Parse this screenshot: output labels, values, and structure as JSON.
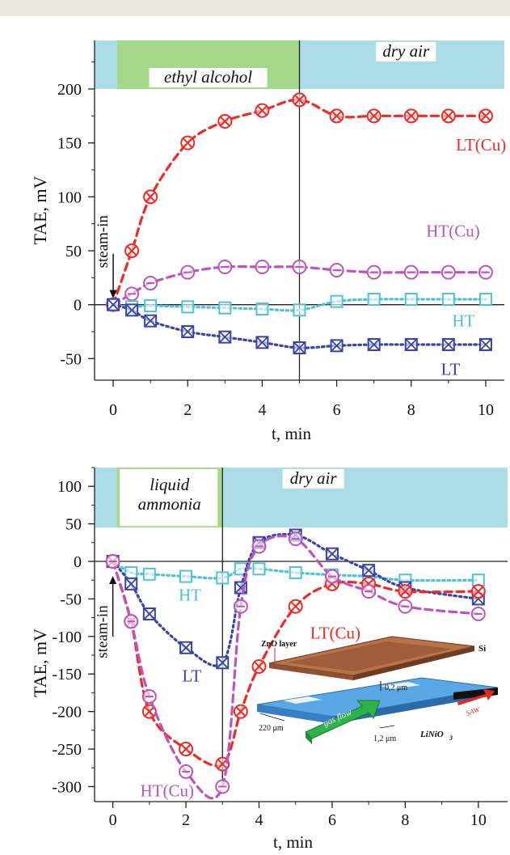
{
  "chart_data": [
    {
      "type": "line",
      "xlabel": "t, min",
      "ylabel": "TAE, mV",
      "xlim": [
        -0.5,
        10.5
      ],
      "ylim": [
        -70,
        245
      ],
      "xticks": [
        0,
        2,
        4,
        6,
        8,
        10
      ],
      "yticks": [
        -50,
        0,
        50,
        100,
        150,
        200
      ],
      "phases": [
        {
          "label": "ethyl alcohol",
          "x0": 0.1,
          "x1": 5.0,
          "color": "#a5d98a"
        },
        {
          "label": "dry air",
          "x0": 5.0,
          "x1": 10.5,
          "color": "#acdde6"
        }
      ],
      "prephase": {
        "x0": -0.5,
        "x1": 0.1,
        "color": "#acdde6"
      },
      "phase_band": [
        200,
        245
      ],
      "phase_line_x": 5,
      "annotation": {
        "text": "steam-in",
        "x": 0,
        "y": 0
      },
      "series": [
        {
          "name": "LT(Cu)",
          "color": "#ee2a24",
          "marker": "circle-x",
          "style": "dashed",
          "x": [
            0,
            0.5,
            1,
            2,
            3,
            4,
            5,
            6,
            7,
            8,
            9,
            10
          ],
          "y": [
            0,
            50,
            100,
            150,
            170,
            180,
            190,
            175,
            175,
            175,
            175,
            175
          ]
        },
        {
          "name": "HT(Cu)",
          "color": "#bb55bb",
          "marker": "circle-dash",
          "style": "dashed",
          "x": [
            0,
            0.5,
            1,
            2,
            3,
            4,
            5,
            6,
            7,
            8,
            9,
            10
          ],
          "y": [
            0,
            10,
            20,
            30,
            35,
            35,
            35,
            32,
            30,
            30,
            30,
            30
          ]
        },
        {
          "name": "HT",
          "color": "#4fc3d6",
          "marker": "square",
          "style": "dotted",
          "x": [
            0,
            0.5,
            1,
            2,
            3,
            4,
            5,
            6,
            7,
            8,
            9,
            10
          ],
          "y": [
            0,
            -2,
            -1,
            -2,
            -3,
            -4,
            -5,
            3,
            5,
            5,
            5,
            5
          ]
        },
        {
          "name": "LT",
          "color": "#3a43a8",
          "marker": "square-x",
          "style": "dotted",
          "x": [
            0,
            0.5,
            1,
            2,
            3,
            4,
            5,
            6,
            7,
            8,
            9,
            10
          ],
          "y": [
            0,
            -5,
            -15,
            -25,
            -30,
            -35,
            -40,
            -38,
            -37,
            -37,
            -37,
            -37
          ]
        }
      ],
      "series_labels": [
        {
          "text": "LT(Cu)",
          "x": 9.2,
          "y": 143,
          "color": "#ee2a24"
        },
        {
          "text": "HT(Cu)",
          "x": 8.4,
          "y": 63,
          "color": "#bb55bb"
        },
        {
          "text": "HT",
          "x": 9.1,
          "y": -20,
          "color": "#4fc3d6"
        },
        {
          "text": "LT",
          "x": 8.8,
          "y": -65,
          "color": "#3a43a8"
        }
      ]
    },
    {
      "type": "line",
      "xlabel": "t, min",
      "ylabel": "TAE, mV",
      "xlim": [
        -0.5,
        10.8
      ],
      "ylim": [
        -320,
        125
      ],
      "xticks": [
        0,
        2,
        4,
        6,
        8,
        10
      ],
      "yticks": [
        -300,
        -250,
        -200,
        -150,
        -100,
        -50,
        0,
        50,
        100
      ],
      "phases": [
        {
          "label": "liquid ammonia",
          "x0": 0.1,
          "x1": 3.0,
          "color": "#a5d98a"
        },
        {
          "label": "dry air",
          "x0": 3.0,
          "x1": 10.8,
          "color": "#acdde6"
        }
      ],
      "prephase": {
        "x0": -0.5,
        "x1": 0.1,
        "color": "#acdde6"
      },
      "phase_band": [
        45,
        125
      ],
      "phase_line_x": 3,
      "annotation": {
        "text": "steam-in",
        "x": 0,
        "y": 0
      },
      "series": [
        {
          "name": "HT",
          "color": "#4fc3d6",
          "marker": "square",
          "style": "dotted",
          "x": [
            0,
            0.5,
            1,
            2,
            3,
            3.5,
            4,
            5,
            6,
            7,
            8,
            10
          ],
          "y": [
            0,
            -15,
            -17,
            -20,
            -22,
            -10,
            -10,
            -15,
            -18,
            -20,
            -25,
            -25
          ]
        },
        {
          "name": "LT",
          "color": "#3a43a8",
          "marker": "square-x",
          "style": "dotted",
          "x": [
            0,
            0.5,
            1,
            2,
            3,
            3.5,
            4,
            5,
            6,
            7,
            8,
            10
          ],
          "y": [
            0,
            -30,
            -70,
            -115,
            -135,
            -35,
            25,
            35,
            10,
            -12,
            -35,
            -50
          ]
        },
        {
          "name": "LT(Cu)",
          "color": "#ee2a24",
          "marker": "circle-x",
          "style": "dashed",
          "x": [
            0,
            0.5,
            1,
            2,
            3,
            3.5,
            4,
            5,
            6,
            7,
            8,
            10
          ],
          "y": [
            0,
            -80,
            -200,
            -250,
            -270,
            -200,
            -140,
            -60,
            -30,
            -30,
            -40,
            -40
          ]
        },
        {
          "name": "HT(Cu)",
          "color": "#bb55bb",
          "marker": "circle-dash",
          "style": "dashed",
          "x": [
            0,
            0.5,
            1,
            2,
            3,
            3.5,
            4,
            5,
            6,
            7,
            8,
            10
          ],
          "y": [
            0,
            -80,
            -180,
            -280,
            -300,
            -60,
            20,
            30,
            -20,
            -40,
            -60,
            -70
          ]
        }
      ],
      "series_labels": [
        {
          "text": "HT",
          "x": 1.8,
          "y": -52,
          "color": "#4fc3d6"
        },
        {
          "text": "LT",
          "x": 1.9,
          "y": -160,
          "color": "#3a43a8"
        },
        {
          "text": "LT(Cu)",
          "x": 5.4,
          "y": -103,
          "color": "#ee2a24"
        },
        {
          "text": "HT(Cu)",
          "x": 0.75,
          "y": -313,
          "color": "#bb55bb"
        }
      ],
      "inset": {
        "labels": {
          "zno": "ZnO layer",
          "si": "Si",
          "gap": "0,2 μm",
          "width": "220 μm",
          "gas": "gas flow",
          "pitch": "1,2 μm",
          "substrate": "LiNiO",
          "substrate_sub": "3",
          "saw": "SAW"
        }
      }
    }
  ]
}
